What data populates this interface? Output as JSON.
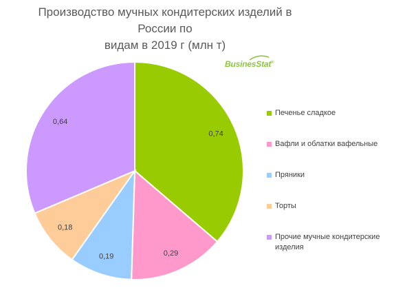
{
  "chart_data": {
    "type": "pie",
    "title": "Производство мучных кондитерских изделий в России по видам в 2019 г (млн т)",
    "categories": [
      "Печенье  сладкое",
      "Вафли и облатки вафельные",
      "Пряники",
      "Торты",
      "Прочие мучные кондитерские изделия"
    ],
    "values": [
      0.74,
      0.29,
      0.19,
      0.18,
      0.64
    ],
    "value_labels": [
      "0,74",
      "0,29",
      "0,19",
      "0,18",
      "0,64"
    ],
    "colors": [
      "#99cc00",
      "#ff99cc",
      "#99ccff",
      "#fdcc99",
      "#cc99ff"
    ],
    "start_angle_deg": 0,
    "direction": "clockwise",
    "legend_position": "right"
  },
  "title_lines": [
    "Производство мучных кондитерских изделий в России по",
    "видам в 2019 г (млн т)"
  ],
  "logo": {
    "text": "BusinesStat",
    "mark": "®",
    "color": "#8cc63f"
  }
}
